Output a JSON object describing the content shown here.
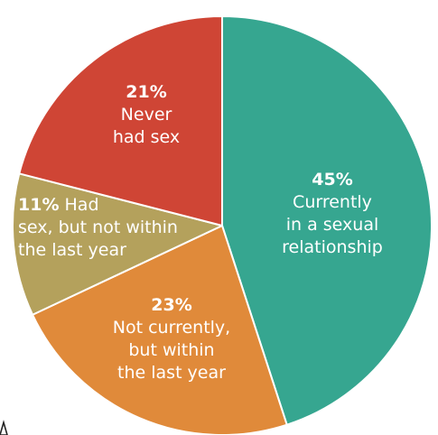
{
  "chart_data": {
    "type": "pie",
    "start_angle_deg": 0,
    "direction": "clockwise",
    "slices": [
      {
        "key": "currently",
        "value": 45,
        "percent_label": "45%",
        "text_lines": [
          "Currently",
          "in a sexual",
          "relationship"
        ],
        "color": "#36a690"
      },
      {
        "key": "not-currently",
        "value": 23,
        "percent_label": "23%",
        "text_lines": [
          "Not currently,",
          "but within",
          "the last year"
        ],
        "color": "#e08a3a"
      },
      {
        "key": "had-sex-not-last-year",
        "value": 11,
        "percent_label": "11%",
        "percent_inline_text": "Had",
        "text_lines": [
          "sex, but not within",
          "the last year"
        ],
        "color": "#b4a15c"
      },
      {
        "key": "never",
        "value": 21,
        "percent_label": "21%",
        "text_lines": [
          "Never",
          "had sex"
        ],
        "color": "#cf4535"
      }
    ]
  }
}
